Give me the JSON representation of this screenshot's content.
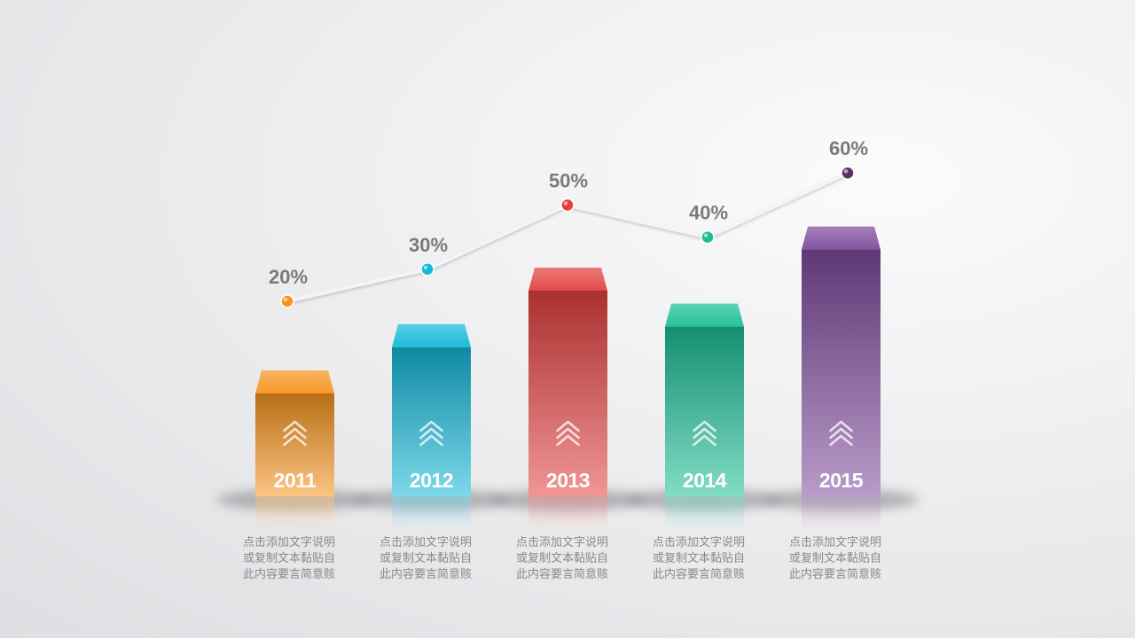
{
  "chart_data": {
    "type": "bar",
    "categories": [
      "2011",
      "2012",
      "2013",
      "2014",
      "2015"
    ],
    "line_values": [
      20,
      30,
      50,
      40,
      60
    ],
    "line_labels": [
      "20%",
      "30%",
      "50%",
      "40%",
      "60%"
    ],
    "bar_heights_relative": [
      1.0,
      1.45,
      2.0,
      1.65,
      2.4
    ],
    "colors": [
      "#f7941d",
      "#12b8d8",
      "#e2403f",
      "#1bbf96",
      "#7e4a9c"
    ],
    "descriptions": [
      "点击添加文字说明或复制文本黏贴自此内容要言简意赅",
      "点击添加文字说明或复制文本黏贴自此内容要言简意赅",
      "点击添加文字说明或复制文本黏贴自此内容要言简意赅",
      "点击添加文字说明或复制文本黏贴自此内容要言简意赅",
      "点击添加文字说明或复制文本黏贴自此内容要言简意赅"
    ],
    "grid": false,
    "legend": "none"
  }
}
